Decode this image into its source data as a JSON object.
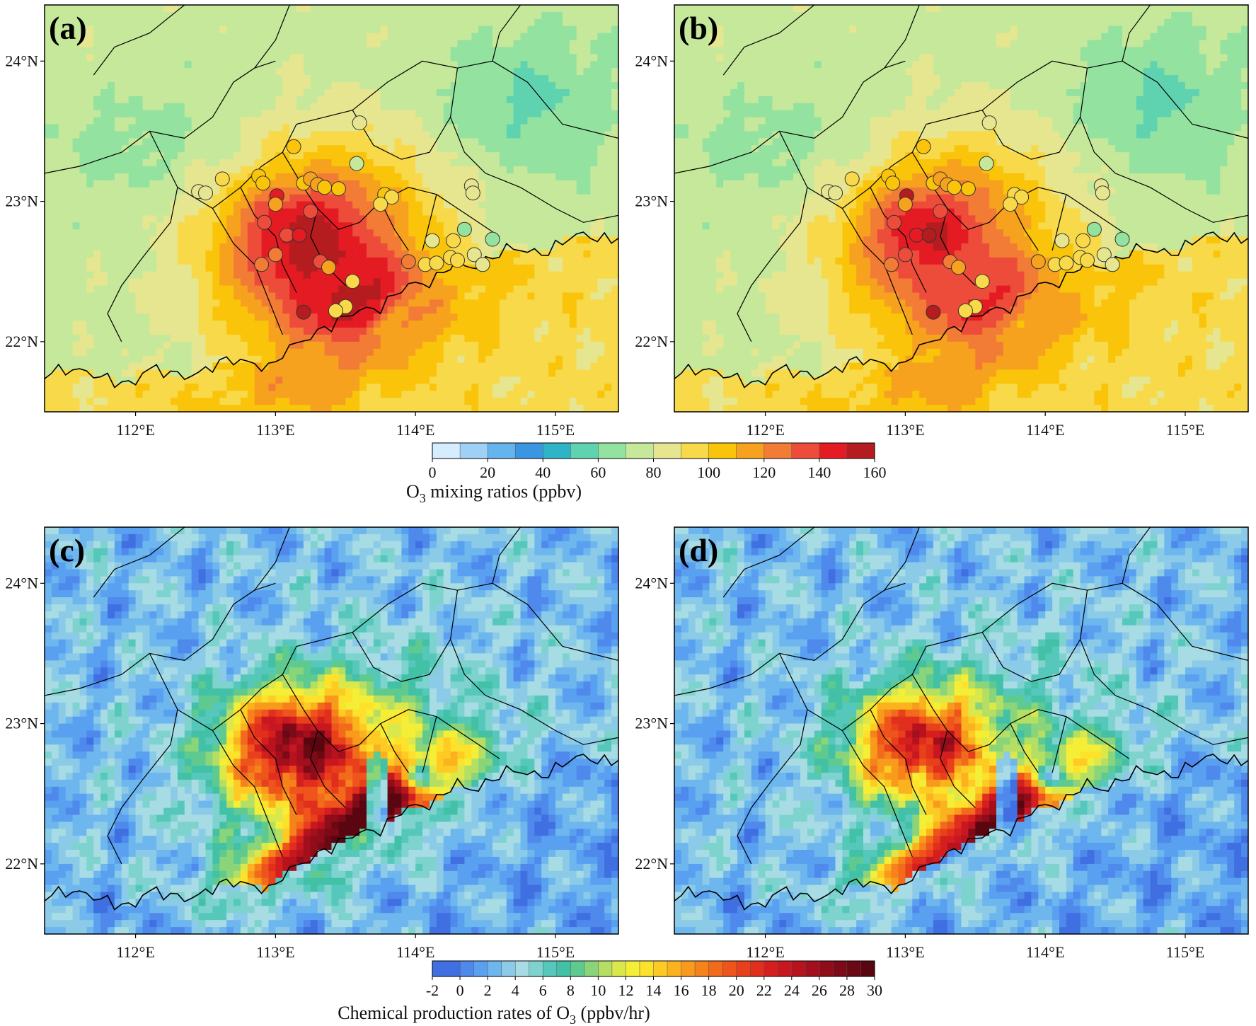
{
  "panels": [
    {
      "tag": "(a)",
      "field": "o3",
      "scenario": 0
    },
    {
      "tag": "(b)",
      "field": "o3",
      "scenario": 1
    },
    {
      "tag": "(c)",
      "field": "prod",
      "scenario": 0
    },
    {
      "tag": "(d)",
      "field": "prod",
      "scenario": 1
    }
  ],
  "map_extent": {
    "lon": [
      111.35,
      115.45
    ],
    "lat": [
      21.5,
      24.4
    ]
  },
  "lon_ticks": [
    {
      "value": 112,
      "label": "112°E"
    },
    {
      "value": 113,
      "label": "113°E"
    },
    {
      "value": 114,
      "label": "114°E"
    },
    {
      "value": 115,
      "label": "115°E"
    }
  ],
  "lat_ticks": [
    {
      "value": 22,
      "label": "22°N"
    },
    {
      "value": 23,
      "label": "23°N"
    },
    {
      "value": 24,
      "label": "24°N"
    }
  ],
  "colorbars": {
    "o3": {
      "title_main": "O",
      "title_sub": "3",
      "title_rest": " mixing ratios (ppbv)",
      "levels": [
        0,
        10,
        20,
        30,
        40,
        50,
        60,
        70,
        80,
        90,
        100,
        110,
        120,
        130,
        140,
        150,
        160
      ],
      "tick_labels": [
        "0",
        "20",
        "40",
        "60",
        "80",
        "100",
        "120",
        "140",
        "160"
      ],
      "colors": [
        "#d6ecff",
        "#9fd1f7",
        "#64b4ee",
        "#3a96e0",
        "#2fb3c6",
        "#5fd3b0",
        "#94e2a0",
        "#c6e89a",
        "#e7e690",
        "#f7d94a",
        "#f9c40a",
        "#f7a21f",
        "#f27c35",
        "#ee4c3a",
        "#e41b23",
        "#b51c1f"
      ]
    },
    "prod": {
      "title_main": "Chemical production rates of O",
      "title_sub": "3",
      "title_rest": " (ppbv/hr)",
      "levels": [
        -2,
        0,
        1,
        2,
        3,
        4,
        5,
        6,
        7,
        8,
        9,
        10,
        11,
        12,
        13,
        14,
        15,
        16,
        17,
        18,
        19,
        20,
        21,
        22,
        23,
        24,
        25,
        26,
        27,
        28,
        29,
        30
      ],
      "tick_labels": [
        "-2",
        "0",
        "2",
        "4",
        "6",
        "8",
        "10",
        "12",
        "14",
        "16",
        "18",
        "20",
        "22",
        "24",
        "26",
        "28",
        "30"
      ],
      "colors": [
        "#3f6fe0",
        "#4f89ec",
        "#5aa0f0",
        "#6eb7ee",
        "#8ccbe8",
        "#a8dce4",
        "#7fd3cf",
        "#56c8bb",
        "#43c1a7",
        "#5fca90",
        "#8ad57a",
        "#b5df62",
        "#dbe84b",
        "#f5ee37",
        "#fde22c",
        "#fdcb24",
        "#fbb21f",
        "#f89a1c",
        "#f5821b",
        "#f26a1b",
        "#ee541b",
        "#e9401c",
        "#e12e1d",
        "#d51f1f",
        "#c81720",
        "#b8121f",
        "#a30f1d",
        "#8f0d1a",
        "#7c0a17",
        "#6a0813",
        "#5a0610"
      ]
    }
  },
  "sites": [
    {
      "lon": 112.45,
      "lat": 23.07,
      "o3": [
        82,
        82
      ]
    },
    {
      "lon": 112.5,
      "lat": 23.06,
      "o3": [
        86,
        86
      ]
    },
    {
      "lon": 112.62,
      "lat": 23.16,
      "o3": [
        96,
        98
      ]
    },
    {
      "lon": 112.88,
      "lat": 23.18,
      "o3": [
        100,
        100
      ]
    },
    {
      "lon": 112.91,
      "lat": 23.13,
      "o3": [
        104,
        104
      ]
    },
    {
      "lon": 113.13,
      "lat": 23.39,
      "o3": [
        102,
        102
      ]
    },
    {
      "lon": 113.01,
      "lat": 23.04,
      "o3": [
        140,
        152
      ]
    },
    {
      "lon": 113.0,
      "lat": 22.98,
      "o3": [
        118,
        118
      ]
    },
    {
      "lon": 113.2,
      "lat": 23.13,
      "o3": [
        105,
        105
      ]
    },
    {
      "lon": 113.25,
      "lat": 23.16,
      "o3": [
        110,
        110
      ]
    },
    {
      "lon": 113.3,
      "lat": 23.12,
      "o3": [
        112,
        112
      ]
    },
    {
      "lon": 113.35,
      "lat": 23.1,
      "o3": [
        108,
        108
      ]
    },
    {
      "lon": 113.45,
      "lat": 23.09,
      "o3": [
        104,
        104
      ]
    },
    {
      "lon": 113.25,
      "lat": 22.93,
      "o3": [
        130,
        132
      ]
    },
    {
      "lon": 112.92,
      "lat": 22.85,
      "o3": [
        132,
        136
      ]
    },
    {
      "lon": 113.08,
      "lat": 22.76,
      "o3": [
        136,
        142
      ]
    },
    {
      "lon": 113.17,
      "lat": 22.76,
      "o3": [
        148,
        150
      ]
    },
    {
      "lon": 113.0,
      "lat": 22.62,
      "o3": [
        128,
        130
      ]
    },
    {
      "lon": 112.9,
      "lat": 22.55,
      "o3": [
        124,
        124
      ]
    },
    {
      "lon": 113.32,
      "lat": 22.57,
      "o3": [
        132,
        128
      ]
    },
    {
      "lon": 113.38,
      "lat": 22.53,
      "o3": [
        118,
        114
      ]
    },
    {
      "lon": 113.6,
      "lat": 23.56,
      "o3": [
        82,
        82
      ]
    },
    {
      "lon": 113.58,
      "lat": 23.27,
      "o3": [
        70,
        70
      ]
    },
    {
      "lon": 113.78,
      "lat": 23.05,
      "o3": [
        100,
        96
      ]
    },
    {
      "lon": 113.83,
      "lat": 23.03,
      "o3": [
        98,
        96
      ]
    },
    {
      "lon": 113.75,
      "lat": 22.98,
      "o3": [
        96,
        94
      ]
    },
    {
      "lon": 113.55,
      "lat": 22.43,
      "o3": [
        92,
        94
      ]
    },
    {
      "lon": 113.5,
      "lat": 22.25,
      "o3": [
        92,
        94
      ]
    },
    {
      "lon": 113.43,
      "lat": 22.22,
      "o3": [
        96,
        96
      ]
    },
    {
      "lon": 113.2,
      "lat": 22.21,
      "o3": [
        150,
        152
      ]
    },
    {
      "lon": 113.95,
      "lat": 22.57,
      "o3": [
        124,
        118
      ]
    },
    {
      "lon": 114.07,
      "lat": 22.55,
      "o3": [
        96,
        96
      ]
    },
    {
      "lon": 114.15,
      "lat": 22.56,
      "o3": [
        98,
        98
      ]
    },
    {
      "lon": 114.12,
      "lat": 22.72,
      "o3": [
        86,
        88
      ]
    },
    {
      "lon": 114.27,
      "lat": 22.72,
      "o3": [
        96,
        96
      ]
    },
    {
      "lon": 114.25,
      "lat": 22.6,
      "o3": [
        92,
        90
      ]
    },
    {
      "lon": 114.3,
      "lat": 22.58,
      "o3": [
        94,
        92
      ]
    },
    {
      "lon": 114.35,
      "lat": 22.8,
      "o3": [
        66,
        66
      ]
    },
    {
      "lon": 114.42,
      "lat": 22.62,
      "o3": [
        84,
        84
      ]
    },
    {
      "lon": 114.48,
      "lat": 22.55,
      "o3": [
        80,
        80
      ]
    },
    {
      "lon": 114.55,
      "lat": 22.73,
      "o3": [
        62,
        62
      ]
    },
    {
      "lon": 114.4,
      "lat": 23.11,
      "o3": [
        82,
        82
      ]
    },
    {
      "lon": 114.41,
      "lat": 23.06,
      "o3": [
        82,
        82
      ]
    }
  ]
}
